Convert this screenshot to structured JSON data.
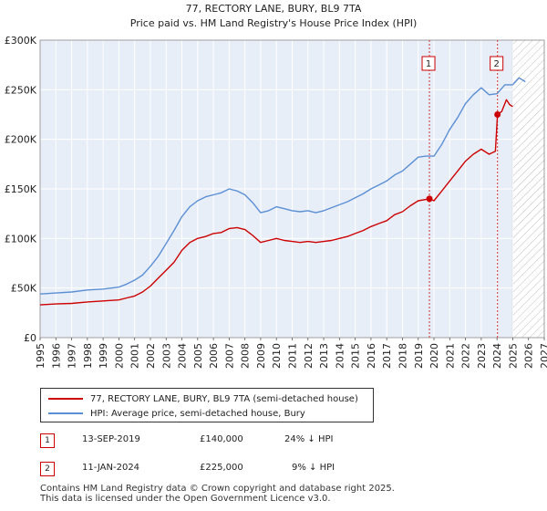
{
  "chart_data": {
    "type": "line",
    "title": "77, RECTORY LANE, BURY, BL9 7TA",
    "subtitle": "Price paid vs. HM Land Registry's House Price Index (HPI)",
    "xlabel": "",
    "ylabel": "",
    "xlim": [
      1995,
      2027
    ],
    "ylim": [
      0,
      300000
    ],
    "x_ticks": [
      "1995",
      "1996",
      "1997",
      "1998",
      "1999",
      "2000",
      "2001",
      "2002",
      "2003",
      "2004",
      "2005",
      "2006",
      "2007",
      "2008",
      "2009",
      "2010",
      "2011",
      "2012",
      "2013",
      "2014",
      "2015",
      "2016",
      "2017",
      "2018",
      "2019",
      "2020",
      "2021",
      "2022",
      "2023",
      "2024",
      "2025",
      "2026",
      "2027"
    ],
    "y_ticks": [
      {
        "value": 0,
        "label": "£0"
      },
      {
        "value": 50000,
        "label": "£50K"
      },
      {
        "value": 100000,
        "label": "£100K"
      },
      {
        "value": 150000,
        "label": "£150K"
      },
      {
        "value": 200000,
        "label": "£200K"
      },
      {
        "value": 250000,
        "label": "£250K"
      },
      {
        "value": 300000,
        "label": "£300K"
      }
    ],
    "grid": true,
    "forecast_from": 2025.0,
    "series": [
      {
        "name": "77, RECTORY LANE, BURY, BL9 7TA (semi-detached house)",
        "color": "#cc0000",
        "x": [
          1995,
          1996,
          1997,
          1998,
          1999,
          2000,
          2000.5,
          2001,
          2001.5,
          2002,
          2002.5,
          2003,
          2003.5,
          2004,
          2004.5,
          2005,
          2005.5,
          2006,
          2006.5,
          2007,
          2007.5,
          2008,
          2008.5,
          2009,
          2009.5,
          2010,
          2010.5,
          2011,
          2011.5,
          2012,
          2012.5,
          2013,
          2013.5,
          2014,
          2014.5,
          2015,
          2015.5,
          2016,
          2016.5,
          2017,
          2017.5,
          2018,
          2018.5,
          2019,
          2019.7,
          2020,
          2020.5,
          2021,
          2021.5,
          2022,
          2022.5,
          2023,
          2023.5,
          2023.9,
          2024.03,
          2024.3,
          2024.6,
          2024.8,
          2025.0
        ],
        "y": [
          33000,
          34000,
          34500,
          36000,
          37000,
          38000,
          40000,
          42000,
          46000,
          52000,
          60000,
          68000,
          76000,
          88000,
          96000,
          100000,
          102000,
          105000,
          106000,
          110000,
          111000,
          109000,
          103000,
          96000,
          98000,
          100000,
          98000,
          97000,
          96000,
          97000,
          96000,
          97000,
          98000,
          100000,
          102000,
          105000,
          108000,
          112000,
          115000,
          118000,
          124000,
          127000,
          133000,
          138000,
          140000,
          138000,
          148000,
          158000,
          168000,
          178000,
          185000,
          190000,
          185000,
          188000,
          225000,
          228000,
          240000,
          235000,
          233000
        ]
      },
      {
        "name": "HPI: Average price, semi-detached house, Bury",
        "color": "#5b8fd4",
        "x": [
          1995,
          1996,
          1997,
          1998,
          1999,
          2000,
          2000.5,
          2001,
          2001.5,
          2002,
          2002.5,
          2003,
          2003.5,
          2004,
          2004.5,
          2005,
          2005.5,
          2006,
          2006.5,
          2007,
          2007.5,
          2008,
          2008.5,
          2009,
          2009.5,
          2010,
          2010.5,
          2011,
          2011.5,
          2012,
          2012.5,
          2013,
          2013.5,
          2014,
          2014.5,
          2015,
          2015.5,
          2016,
          2016.5,
          2017,
          2017.5,
          2018,
          2018.5,
          2019,
          2019.5,
          2020,
          2020.5,
          2021,
          2021.5,
          2022,
          2022.5,
          2023,
          2023.5,
          2024,
          2024.5,
          2025.0
        ],
        "y": [
          44000,
          45000,
          46000,
          48000,
          49000,
          51000,
          54000,
          58000,
          63000,
          72000,
          82000,
          95000,
          108000,
          122000,
          132000,
          138000,
          142000,
          144000,
          146000,
          150000,
          148000,
          144000,
          136000,
          126000,
          128000,
          132000,
          130000,
          128000,
          127000,
          128000,
          126000,
          128000,
          131000,
          134000,
          137000,
          141000,
          145000,
          150000,
          154000,
          158000,
          164000,
          168000,
          175000,
          182000,
          183000,
          183000,
          195000,
          210000,
          222000,
          236000,
          245000,
          252000,
          245000,
          246000,
          255000,
          255000
        ]
      }
    ],
    "forecast_series": {
      "name": "HPI forecast",
      "x": [
        2025.0,
        2025.4,
        2025.8
      ],
      "y": [
        255000,
        262000,
        258000
      ]
    },
    "annotations": [
      {
        "label": "1",
        "x": 2019.71,
        "value": 140000
      },
      {
        "label": "2",
        "x": 2024.03,
        "value": 225000
      }
    ]
  },
  "legend": {
    "property_label": "77, RECTORY LANE, BURY, BL9 7TA (semi-detached house)",
    "hpi_label": "HPI: Average price, semi-detached house, Bury"
  },
  "sales": [
    {
      "num": "1",
      "date": "13-SEP-2019",
      "price": "£140,000",
      "hpi": "24% ↓ HPI"
    },
    {
      "num": "2",
      "date": "11-JAN-2024",
      "price": "£225,000",
      "hpi": "9% ↓ HPI"
    }
  ],
  "footer": {
    "line1": "Contains HM Land Registry data © Crown copyright and database right 2025.",
    "line2": "This data is licensed under the Open Government Licence v3.0."
  },
  "colors": {
    "property": "#cc0000",
    "hpi": "#5b8fd4",
    "plot_bg": "#e8eef8",
    "grid": "#ffffff",
    "marker_line": "#cc3333"
  }
}
